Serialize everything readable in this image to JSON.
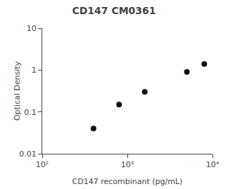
{
  "chart_data": {
    "type": "scatter",
    "title": "CD147 CM0361",
    "xlabel": "CD147 recombinant (pg/mL)",
    "ylabel": "Optical Density",
    "x": [
      400,
      800,
      1600,
      5000,
      8000
    ],
    "values": [
      0.04,
      0.15,
      0.3,
      0.9,
      1.4
    ],
    "xlim": [
      100,
      10000
    ],
    "ylim": [
      0.01,
      10
    ],
    "xticks": [
      {
        "value": 100,
        "label": "10²"
      },
      {
        "value": 1000,
        "label": "10³"
      },
      {
        "value": 10000,
        "label": "10⁴"
      }
    ],
    "yticks": [
      0.01,
      0.1,
      1,
      10
    ],
    "log": true,
    "grid": false,
    "marker": "circle",
    "color": "#111111"
  }
}
